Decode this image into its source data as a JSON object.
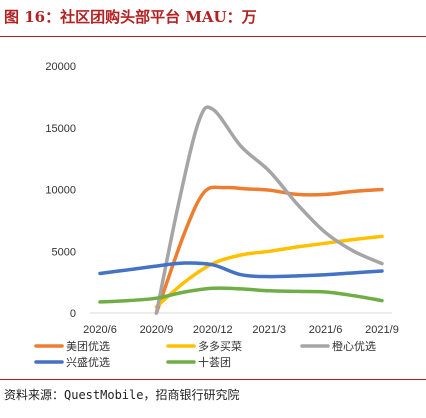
{
  "title": "图 16：社区团购头部平台 MAU：万",
  "source": "资料来源：QuestMobile，招商银行研究院",
  "chart_data": {
    "type": "line",
    "x": [
      "2020/6",
      "2020/9",
      "2020/12",
      "2021/3",
      "2021/6",
      "2021/9"
    ],
    "ylim": [
      0,
      20000
    ],
    "yticks": [
      0,
      5000,
      10000,
      15000,
      20000
    ],
    "grid": false,
    "legend_position": "bottom",
    "series": [
      {
        "name": "美团优选",
        "color": "#ED7D31",
        "points": [
          [
            1,
            0
          ],
          [
            1.5,
            6500
          ],
          [
            1.85,
            9800
          ],
          [
            2.2,
            10150
          ],
          [
            2.6,
            10050
          ],
          [
            3,
            9950
          ],
          [
            3.5,
            9600
          ],
          [
            4,
            9600
          ],
          [
            4.5,
            9850
          ],
          [
            5,
            10000
          ]
        ]
      },
      {
        "name": "多多买菜",
        "color": "#FFC000",
        "points": [
          [
            1,
            500
          ],
          [
            1.5,
            2500
          ],
          [
            2,
            4000
          ],
          [
            2.5,
            4700
          ],
          [
            3,
            5000
          ],
          [
            3.5,
            5350
          ],
          [
            4,
            5650
          ],
          [
            4.5,
            5950
          ],
          [
            5,
            6200
          ]
        ]
      },
      {
        "name": "橙心优选",
        "color": "#A5A5A5",
        "points": [
          [
            1,
            0
          ],
          [
            1.4,
            9000
          ],
          [
            1.75,
            15500
          ],
          [
            2,
            16500
          ],
          [
            2.5,
            13500
          ],
          [
            3,
            11500
          ],
          [
            3.5,
            8800
          ],
          [
            4,
            6500
          ],
          [
            4.5,
            5000
          ],
          [
            5,
            4000
          ]
        ]
      },
      {
        "name": "兴盛优选",
        "color": "#4472C4",
        "points": [
          [
            0,
            3200
          ],
          [
            0.5,
            3500
          ],
          [
            1,
            3800
          ],
          [
            1.5,
            4050
          ],
          [
            2,
            3900
          ],
          [
            2.5,
            3100
          ],
          [
            3,
            2950
          ],
          [
            3.5,
            3000
          ],
          [
            4,
            3100
          ],
          [
            4.5,
            3250
          ],
          [
            5,
            3400
          ]
        ]
      },
      {
        "name": "十荟团",
        "color": "#70AD47",
        "points": [
          [
            0,
            900
          ],
          [
            0.5,
            1000
          ],
          [
            1,
            1200
          ],
          [
            1.5,
            1700
          ],
          [
            2,
            2000
          ],
          [
            2.5,
            1950
          ],
          [
            3,
            1800
          ],
          [
            3.5,
            1750
          ],
          [
            4,
            1700
          ],
          [
            4.5,
            1400
          ],
          [
            5,
            1000
          ]
        ]
      }
    ]
  }
}
